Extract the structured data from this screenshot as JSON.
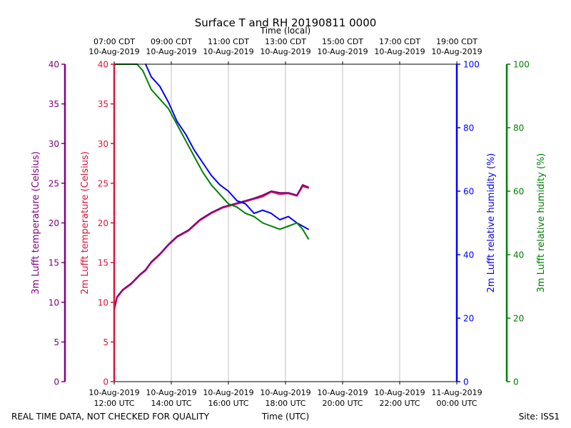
{
  "chart_data": {
    "type": "line",
    "title": "Surface T and RH 20190811 0000",
    "top_axis_label": "Time (local)",
    "xlabel": "Time (UTC)",
    "footer_left": "REAL TIME DATA, NOT CHECKED FOR QUALITY",
    "footer_right": "Site: ISS1",
    "x_range_hours_utc": [
      12,
      24
    ],
    "bottom_ticks": [
      {
        "hour": 12,
        "line1": "10-Aug-2019",
        "line2": "12:00 UTC"
      },
      {
        "hour": 14,
        "line1": "10-Aug-2019",
        "line2": "14:00 UTC"
      },
      {
        "hour": 16,
        "line1": "10-Aug-2019",
        "line2": "16:00 UTC"
      },
      {
        "hour": 18,
        "line1": "10-Aug-2019",
        "line2": "18:00 UTC"
      },
      {
        "hour": 20,
        "line1": "10-Aug-2019",
        "line2": "20:00 UTC"
      },
      {
        "hour": 22,
        "line1": "10-Aug-2019",
        "line2": "22:00 UTC"
      },
      {
        "hour": 24,
        "line1": "11-Aug-2019",
        "line2": "00:00 UTC"
      }
    ],
    "top_ticks": [
      {
        "hour": 12,
        "line1": "07:00 CDT",
        "line2": "10-Aug-2019"
      },
      {
        "hour": 14,
        "line1": "09:00 CDT",
        "line2": "10-Aug-2019"
      },
      {
        "hour": 16,
        "line1": "11:00 CDT",
        "line2": "10-Aug-2019"
      },
      {
        "hour": 18,
        "line1": "13:00 CDT",
        "line2": "10-Aug-2019"
      },
      {
        "hour": 20,
        "line1": "15:00 CDT",
        "line2": "10-Aug-2019"
      },
      {
        "hour": 22,
        "line1": "17:00 CDT",
        "line2": "10-Aug-2019"
      },
      {
        "hour": 24,
        "line1": "19:00 CDT",
        "line2": "10-Aug-2019"
      }
    ],
    "axes": {
      "t3m": {
        "label": "3m Lufft temperature (Celsius)",
        "color": "#800080",
        "ylim": [
          0,
          40
        ],
        "ticks": [
          0,
          5,
          10,
          15,
          20,
          25,
          30,
          35,
          40
        ]
      },
      "t2m": {
        "label": "2m Lufft temperature (Celsius)",
        "color": "#dc143c",
        "ylim": [
          0,
          40
        ],
        "ticks": [
          0,
          5,
          10,
          15,
          20,
          25,
          30,
          35,
          40
        ]
      },
      "rh2m": {
        "label": "2m Lufft relative humidity (%)",
        "color": "#0000ff",
        "ylim": [
          0,
          100
        ],
        "ticks": [
          0,
          20,
          40,
          60,
          80,
          100
        ]
      },
      "rh3m": {
        "label": "3m Lufft relative humidity (%)",
        "color": "#008000",
        "ylim": [
          0,
          100
        ],
        "ticks": [
          0,
          20,
          40,
          60,
          80,
          100
        ]
      }
    },
    "series": [
      {
        "name": "2m temperature",
        "axis": "t2m",
        "color": "#dc143c",
        "x": [
          12.0,
          12.1,
          12.3,
          12.6,
          12.9,
          13.1,
          13.3,
          13.6,
          13.9,
          14.2,
          14.6,
          15.0,
          15.4,
          15.8,
          16.2,
          16.6,
          16.9,
          17.2,
          17.5,
          17.8,
          18.1,
          18.4,
          18.6,
          18.8
        ],
        "y": [
          9.0,
          10.6,
          11.5,
          12.3,
          13.4,
          14.0,
          15.0,
          16.0,
          17.2,
          18.2,
          19.0,
          20.3,
          21.2,
          21.9,
          22.3,
          22.7,
          23.0,
          23.3,
          23.9,
          23.6,
          23.7,
          23.4,
          24.6,
          24.4
        ]
      },
      {
        "name": "3m temperature",
        "axis": "t3m",
        "color": "#800080",
        "x": [
          12.0,
          12.1,
          12.3,
          12.6,
          12.9,
          13.1,
          13.3,
          13.6,
          13.9,
          14.2,
          14.6,
          15.0,
          15.4,
          15.8,
          16.2,
          16.6,
          16.9,
          17.2,
          17.5,
          17.8,
          18.1,
          18.4,
          18.6,
          18.8
        ],
        "y": [
          9.2,
          10.7,
          11.6,
          12.4,
          13.5,
          14.1,
          15.1,
          16.1,
          17.3,
          18.3,
          19.1,
          20.4,
          21.3,
          22.0,
          22.4,
          22.8,
          23.1,
          23.5,
          24.0,
          23.8,
          23.8,
          23.5,
          24.8,
          24.5
        ]
      },
      {
        "name": "2m relative humidity",
        "axis": "rh2m",
        "color": "#0000ff",
        "x": [
          13.1,
          13.3,
          13.6,
          13.9,
          14.2,
          14.5,
          14.8,
          15.1,
          15.4,
          15.7,
          16.0,
          16.3,
          16.6,
          16.9,
          17.2,
          17.5,
          17.8,
          18.1,
          18.4,
          18.6,
          18.8
        ],
        "y": [
          100,
          96,
          93,
          88,
          82,
          78,
          73,
          69,
          65,
          62,
          60,
          57,
          56,
          53,
          54,
          53,
          51,
          52,
          50,
          49,
          48
        ]
      },
      {
        "name": "3m relative humidity",
        "axis": "rh3m",
        "color": "#008000",
        "x": [
          12.0,
          12.4,
          12.8,
          13.0,
          13.3,
          13.6,
          13.9,
          14.2,
          14.5,
          14.8,
          15.1,
          15.4,
          15.7,
          16.0,
          16.3,
          16.6,
          16.9,
          17.2,
          17.5,
          17.8,
          18.1,
          18.4,
          18.6,
          18.8
        ],
        "y": [
          100,
          100,
          100,
          98,
          92,
          89,
          86,
          81,
          76,
          71,
          66,
          62,
          59,
          56,
          55,
          53,
          52,
          50,
          49,
          48,
          49,
          50,
          48,
          45
        ]
      }
    ]
  }
}
